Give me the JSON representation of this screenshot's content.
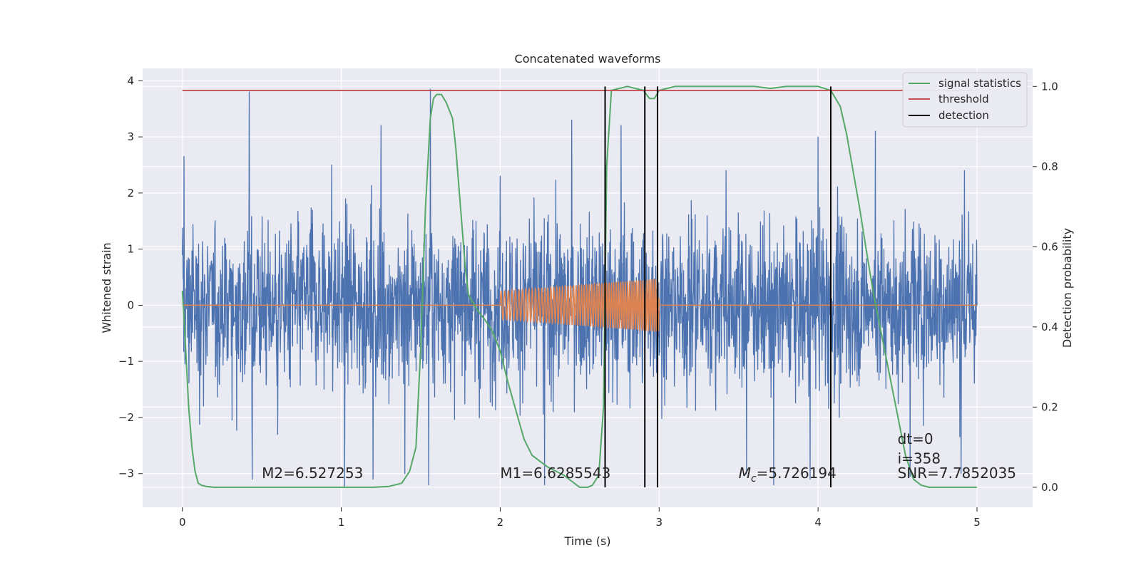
{
  "chart_data": {
    "type": "line",
    "title": "Concatenated waveforms",
    "xlabel": "Time (s)",
    "ylabel": "Whitened strain",
    "y2label": "Detection probability",
    "xlim": [
      -0.25,
      5.35
    ],
    "ylim": [
      -3.6,
      4.22
    ],
    "y2lim": [
      -0.05,
      1.045
    ],
    "xticks": [
      "0",
      "1",
      "2",
      "3",
      "4",
      "5"
    ],
    "yticks": [
      "4",
      "3",
      "2",
      "1",
      "0",
      "−1",
      "−2",
      "−3"
    ],
    "y2ticks": [
      "1.0",
      "0.8",
      "0.6",
      "0.4",
      "0.2",
      "0.0"
    ],
    "grid": true,
    "legend_position": "top-right",
    "colors": {
      "strain": "#4c72b0",
      "template": "#dd8452",
      "signal_statistics": "#55a868",
      "threshold": "#c44e52",
      "detection": "#000000",
      "background": "#eaeaf2",
      "grid": "#ffffff"
    },
    "series": [
      {
        "name": "",
        "axis": "left",
        "kind": "whitened noise",
        "x_range": [
          0,
          5
        ],
        "typical_envelope": [
          -1.5,
          1.7
        ],
        "peaks": [
          [
            0.01,
            2.65
          ],
          [
            0.42,
            3.8
          ],
          [
            0.94,
            2.5
          ],
          [
            1.56,
            3.85
          ],
          [
            1.25,
            3.2
          ],
          [
            2.0,
            2.3
          ],
          [
            2.45,
            3.3
          ],
          [
            2.76,
            3.2
          ],
          [
            3.42,
            2.4
          ],
          [
            4.36,
            3.1
          ],
          [
            4.0,
            3.0
          ],
          [
            4.92,
            2.4
          ]
        ],
        "troughs": [
          [
            0.44,
            -3.1
          ],
          [
            0.6,
            -2.3
          ],
          [
            1.02,
            -3.25
          ],
          [
            1.2,
            -3.1
          ],
          [
            1.4,
            -3.0
          ],
          [
            1.55,
            -3.2
          ],
          [
            2.28,
            -3.2
          ],
          [
            3.55,
            -3.0
          ],
          [
            3.72,
            -3.2
          ],
          [
            3.95,
            -3.1
          ],
          [
            4.9,
            -3.0
          ],
          [
            4.58,
            -3.05
          ]
        ]
      },
      {
        "name": "",
        "axis": "left",
        "kind": "injected chirp",
        "x_range": [
          0,
          5
        ],
        "chirp_start": 2.0,
        "chirp_end": 3.0,
        "amplitude_start": 0.25,
        "amplitude_end": 0.47,
        "frequency_start_hz": 42,
        "frequency_end_hz": 78
      },
      {
        "name": "signal statistics",
        "axis": "right",
        "x": [
          0,
          0.02,
          0.04,
          0.06,
          0.08,
          0.1,
          0.12,
          0.15,
          0.2,
          0.3,
          0.5,
          0.8,
          1.0,
          1.2,
          1.3,
          1.38,
          1.43,
          1.47,
          1.5,
          1.53,
          1.56,
          1.58,
          1.6,
          1.63,
          1.66,
          1.7,
          1.72,
          1.75,
          1.78,
          1.8,
          1.83,
          1.86,
          1.9,
          1.95,
          2.0,
          2.05,
          2.1,
          2.15,
          2.2,
          2.3,
          2.4,
          2.5,
          2.55,
          2.58,
          2.62,
          2.65,
          2.67,
          2.7,
          2.8,
          2.9,
          2.94,
          2.97,
          3.0,
          3.1,
          3.3,
          3.6,
          3.7,
          3.8,
          4.0,
          4.08,
          4.14,
          4.18,
          4.22,
          4.26,
          4.3,
          4.35,
          4.4,
          4.45,
          4.5,
          4.55,
          4.6,
          4.65,
          4.7,
          5.0
        ],
        "y": [
          0.49,
          0.35,
          0.2,
          0.1,
          0.04,
          0.01,
          0.005,
          0.002,
          0.0,
          0.0,
          0.0,
          0.0,
          0.0,
          0.0,
          0.002,
          0.01,
          0.04,
          0.1,
          0.35,
          0.7,
          0.92,
          0.97,
          0.98,
          0.98,
          0.96,
          0.92,
          0.85,
          0.7,
          0.55,
          0.48,
          0.46,
          0.44,
          0.42,
          0.39,
          0.34,
          0.26,
          0.19,
          0.12,
          0.08,
          0.05,
          0.03,
          0.0,
          0.0,
          0.005,
          0.03,
          0.2,
          0.8,
          0.99,
          1.0,
          0.99,
          0.97,
          0.97,
          0.99,
          1.0,
          1.0,
          1.0,
          0.995,
          1.0,
          1.0,
          0.99,
          0.95,
          0.88,
          0.79,
          0.7,
          0.6,
          0.48,
          0.38,
          0.28,
          0.18,
          0.08,
          0.02,
          0.005,
          0.0,
          0.0
        ]
      },
      {
        "name": "threshold",
        "axis": "right",
        "x": [
          0,
          5
        ],
        "y": [
          0.99,
          0.99
        ]
      }
    ],
    "detections": [
      2.66,
      2.91,
      2.99,
      4.08
    ],
    "detection_name": "detection",
    "annotations": [
      {
        "x": 0.5,
        "y": -3.08,
        "text": "M2=6.527253"
      },
      {
        "x": 2.0,
        "y": -3.08,
        "text": "M1=6.6285543"
      },
      {
        "x": 3.5,
        "y": -3.08,
        "text": "=5.726194",
        "prefix": "M",
        "subscript": "c"
      },
      {
        "x": 4.5,
        "y": -2.47,
        "text": "dt=0"
      },
      {
        "x": 4.5,
        "y": -2.82,
        "text": "i=358"
      },
      {
        "x": 4.5,
        "y": -3.08,
        "text": "SNR=7.7852035"
      }
    ]
  }
}
